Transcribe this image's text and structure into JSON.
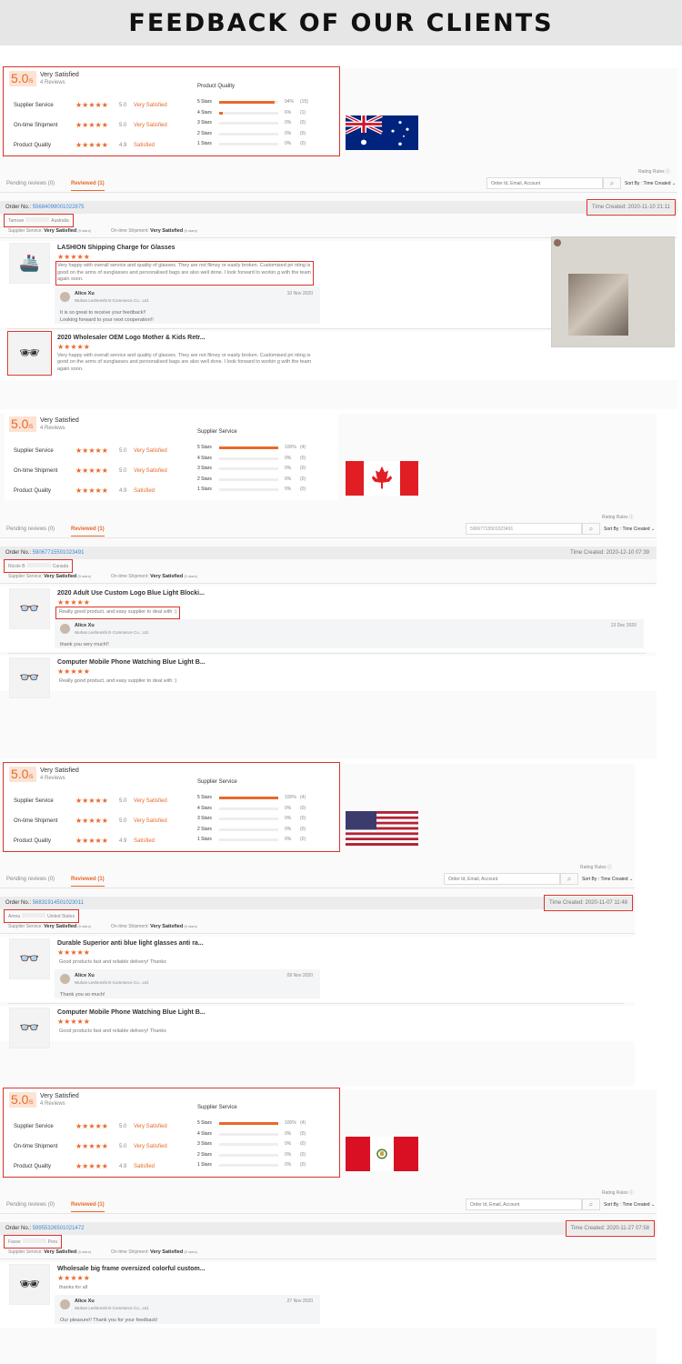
{
  "header": {
    "title": "FEEDBACK OF OUR CLIENTS"
  },
  "colors": {
    "accent": "#e8692b",
    "highlight": "#d9342b",
    "link": "#3d87d6"
  },
  "sections": [
    {
      "country": "Australia",
      "flag": "australia-flag",
      "summary": {
        "score": "5.0",
        "score_suffix": "/5",
        "label": "Very Satisfied",
        "reviews": "4 Reviews",
        "ratings": [
          {
            "name": "Supplier Service",
            "stars": 5,
            "score": "5.0",
            "label": "Very Satisfied"
          },
          {
            "name": "On-time Shipment",
            "stars": 5,
            "score": "5.0",
            "label": "Very Satisfied"
          },
          {
            "name": "Product Quality",
            "stars": 5,
            "score": "4.9",
            "label": "Satisfied"
          }
        ],
        "breakdown_title": "Product Quality",
        "breakdown": [
          {
            "label": "5 Stars",
            "fill": 94,
            "pct": "94%",
            "count": "(15)"
          },
          {
            "label": "4 Stars",
            "fill": 6,
            "pct": "6%",
            "count": "(1)"
          },
          {
            "label": "3 Stars",
            "fill": 0,
            "pct": "0%",
            "count": "(0)"
          },
          {
            "label": "2 Stars",
            "fill": 0,
            "pct": "0%",
            "count": "(0)"
          },
          {
            "label": "1 Stars",
            "fill": 0,
            "pct": "0%",
            "count": "(0)"
          }
        ]
      },
      "toolbar": {
        "rating_rules": "Rating Rules",
        "search_value": "",
        "search_placeholder": "Order Id, Email, Account",
        "sort": "Sort By : Time Created"
      },
      "tabs": [
        {
          "label": "Pending reviews (0)",
          "active": false
        },
        {
          "label": "Reviewed (1)",
          "active": true
        }
      ],
      "order": {
        "label": "Order No.:",
        "number": "55684099001022875",
        "time_created": "Time Created: 2020-11-10 21:11"
      },
      "buyer": {
        "name": "Tamsse",
        "country": "Australia"
      },
      "ratings_line": [
        {
          "label": "Supplier Service:",
          "value": "Very Satisfied",
          "stars": "(5 stars)"
        },
        {
          "label": "On-time Shipment:",
          "value": "Very Satisfied",
          "stars": "(5 stars)"
        }
      ],
      "items": [
        {
          "title": "LASHION Shipping Charge for Glasses",
          "stars": 5,
          "thumb": "ship",
          "text": "Very happy with overall service and quality of glasses. They are not flimsy or easily broken. Customised pri nting is good on the arms of sunglasses and personalised bags are also well done. I look forward to workin g with the team again soon.",
          "reply": {
            "name": "Alice Xu",
            "company": "Wuhan Leshenshi E-Commerce Co., Ltd.",
            "date": "10 Nov 2020",
            "text": [
              "It is so great to receive your feedback!!",
              "Looking forward to your next cooperation!!"
            ]
          }
        },
        {
          "title": "2020 Wholesaler OEM Logo Mother & Kids Retr...",
          "stars": 5,
          "thumb": "cat-eye",
          "text": "Very happy with overall service and quality of glasses. They are not flimsy or easily broken. Customised pri nting is good on the arms of sunglasses and personalised bags are also well done. I look forward to workin g with the team again soon."
        }
      ]
    },
    {
      "country": "Canada",
      "flag": "canada-flag",
      "summary": {
        "score": "5.0",
        "score_suffix": "/5",
        "label": "Very Satisfied",
        "reviews": "4 Reviews",
        "ratings": [
          {
            "name": "Supplier Service",
            "stars": 5,
            "score": "5.0",
            "label": "Very Satisfied"
          },
          {
            "name": "On-time Shipment",
            "stars": 5,
            "score": "5.0",
            "label": "Very Satisfied"
          },
          {
            "name": "Product Quality",
            "stars": 5,
            "score": "4.9",
            "label": "Satisfied"
          }
        ],
        "breakdown_title": "Supplier Service",
        "breakdown": [
          {
            "label": "5 Stars",
            "fill": 100,
            "pct": "100%",
            "count": "(4)"
          },
          {
            "label": "4 Stars",
            "fill": 0,
            "pct": "0%",
            "count": "(0)"
          },
          {
            "label": "3 Stars",
            "fill": 0,
            "pct": "0%",
            "count": "(0)"
          },
          {
            "label": "2 Stars",
            "fill": 0,
            "pct": "0%",
            "count": "(0)"
          },
          {
            "label": "1 Stars",
            "fill": 0,
            "pct": "0%",
            "count": "(0)"
          }
        ]
      },
      "toolbar": {
        "rating_rules": "Rating Rules",
        "search_value": "59067715501023491",
        "search_placeholder": "",
        "sort": "Sort By : Time Created"
      },
      "tabs": [
        {
          "label": "Pending reviews (0)",
          "active": false
        },
        {
          "label": "Reviewed (1)",
          "active": true
        }
      ],
      "order": {
        "label": "Order No.:",
        "number": "59067715501023491",
        "time_created": "Time Created: 2020-12-10 07:39"
      },
      "buyer": {
        "name": "Nicole B",
        "country": "Canada"
      },
      "ratings_line": [
        {
          "label": "Supplier Service:",
          "value": "Very Satisfied",
          "stars": "(5 stars)"
        },
        {
          "label": "On-time Shipment:",
          "value": "Very Satisfied",
          "stars": "(5 stars)"
        }
      ],
      "items": [
        {
          "title": "2020 Adult Use Custom Logo Blue Light Blocki...",
          "stars": 5,
          "thumb": "glasses",
          "text": "Really good product, and easy supplier to deal with :)",
          "reply": {
            "name": "Alice Xu",
            "company": "Wuhan Leshenshi E-Commerce Co., Ltd.",
            "date": "13 Dec 2020",
            "text": [
              "thank you very much!!"
            ]
          }
        },
        {
          "title": "Computer Mobile Phone Watching Blue Light B...",
          "stars": 5,
          "thumb": "glasses",
          "text": "Really good product, and easy supplier to deal with :)"
        }
      ]
    },
    {
      "country": "United States",
      "flag": "usa-flag",
      "summary": {
        "score": "5.0",
        "score_suffix": "/5",
        "label": "Very Satisfied",
        "reviews": "4 Reviews",
        "ratings": [
          {
            "name": "Supplier Service",
            "stars": 5,
            "score": "5.0",
            "label": "Very Satisfied"
          },
          {
            "name": "On-time Shipment",
            "stars": 5,
            "score": "5.0",
            "label": "Very Satisfied"
          },
          {
            "name": "Product Quality",
            "stars": 5,
            "score": "4.9",
            "label": "Satisfied"
          }
        ],
        "breakdown_title": "Supplier Service",
        "breakdown": [
          {
            "label": "5 Stars",
            "fill": 100,
            "pct": "100%",
            "count": "(4)"
          },
          {
            "label": "4 Stars",
            "fill": 0,
            "pct": "0%",
            "count": "(0)"
          },
          {
            "label": "3 Stars",
            "fill": 0,
            "pct": "0%",
            "count": "(0)"
          },
          {
            "label": "2 Stars",
            "fill": 0,
            "pct": "0%",
            "count": "(0)"
          },
          {
            "label": "1 Stars",
            "fill": 0,
            "pct": "0%",
            "count": "(0)"
          }
        ]
      },
      "toolbar": {
        "rating_rules": "Rating Rules",
        "search_value": "",
        "search_placeholder": "Order Id, Email, Account",
        "sort": "Sort By : Time Created"
      },
      "tabs": [
        {
          "label": "Pending reviews (0)",
          "active": false
        },
        {
          "label": "Reviewed (1)",
          "active": true
        }
      ],
      "order": {
        "label": "Order No.:",
        "number": "56831914501023011",
        "time_created": "Time Created: 2020-11-07 11:48"
      },
      "buyer": {
        "name": "Amna",
        "country": "United States"
      },
      "ratings_line": [
        {
          "label": "Supplier Service:",
          "value": "Very Satisfied",
          "stars": "(5 stars)"
        },
        {
          "label": "On-time Shipment:",
          "value": "Very Satisfied",
          "stars": "(5 stars)"
        }
      ],
      "items": [
        {
          "title": "Durable Superior anti blue light glasses anti ra...",
          "stars": 5,
          "thumb": "glasses",
          "text": "Good products fast and reliable delivery! Thanks",
          "reply": {
            "name": "Alice Xu",
            "company": "Wuhan Leshenshi E-Commerce Co., Ltd.",
            "date": "09 Nov 2020",
            "text": [
              "Thank you so much!"
            ]
          }
        },
        {
          "title": "Computer Mobile Phone Watching Blue Light B...",
          "stars": 5,
          "thumb": "glasses",
          "text": "Good products fast and reliable delivery! Thanks"
        }
      ]
    },
    {
      "country": "Peru",
      "flag": "peru-flag",
      "summary": {
        "score": "5.0",
        "score_suffix": "/5",
        "label": "Very Satisfied",
        "reviews": "4 Reviews",
        "ratings": [
          {
            "name": "Supplier Service",
            "stars": 5,
            "score": "5.0",
            "label": "Very Satisfied"
          },
          {
            "name": "On-time Shipment",
            "stars": 5,
            "score": "5.0",
            "label": "Very Satisfied"
          },
          {
            "name": "Product Quality",
            "stars": 5,
            "score": "4.9",
            "label": "Satisfied"
          }
        ],
        "breakdown_title": "Supplier Service",
        "breakdown": [
          {
            "label": "5 Stars",
            "fill": 100,
            "pct": "100%",
            "count": "(4)"
          },
          {
            "label": "4 Stars",
            "fill": 0,
            "pct": "0%",
            "count": "(0)"
          },
          {
            "label": "3 Stars",
            "fill": 0,
            "pct": "0%",
            "count": "(0)"
          },
          {
            "label": "2 Stars",
            "fill": 0,
            "pct": "0%",
            "count": "(0)"
          },
          {
            "label": "1 Stars",
            "fill": 0,
            "pct": "0%",
            "count": "(0)"
          }
        ]
      },
      "toolbar": {
        "rating_rules": "Rating Rules",
        "search_value": "",
        "search_placeholder": "Order Id, Email, Account",
        "sort": "Sort By : Time Created"
      },
      "tabs": [
        {
          "label": "Pending reviews (0)",
          "active": false
        },
        {
          "label": "Reviewed (1)",
          "active": true
        }
      ],
      "order": {
        "label": "Order No.:",
        "number": "59955326501021472",
        "time_created": "Time Created: 2020-11-27 07:58"
      },
      "buyer": {
        "name": "Fasse",
        "country": "Peru"
      },
      "ratings_line": [
        {
          "label": "Supplier Service:",
          "value": "Very Satisfied",
          "stars": "(5 stars)"
        },
        {
          "label": "On-time Shipment:",
          "value": "Very Satisfied",
          "stars": "(5 stars)"
        }
      ],
      "items": [
        {
          "title": "Wholesale big frame oversized colorful custom...",
          "stars": 5,
          "thumb": "sunglasses",
          "text": "thanks for all",
          "reply": {
            "name": "Alice Xu",
            "company": "Wuhan Leshenshi E-Commerce Co., Ltd.",
            "date": "27 Nov 2020",
            "text": [
              "Our pleasure!! Thank you for your feedback!"
            ]
          }
        }
      ]
    }
  ]
}
